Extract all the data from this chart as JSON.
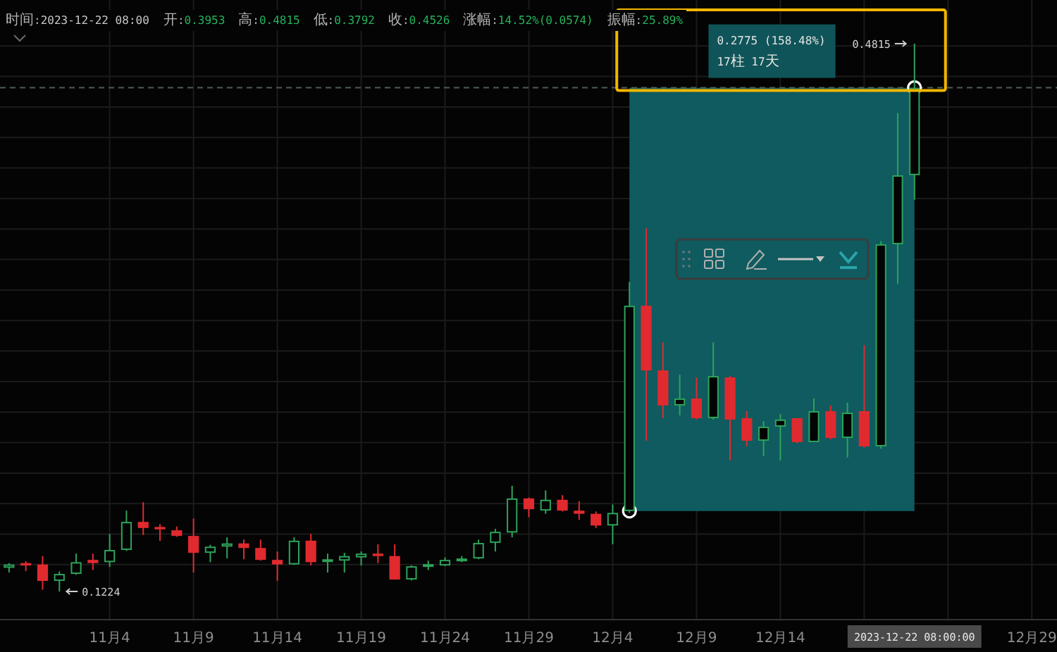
{
  "chart_data": {
    "type": "candlestick",
    "title": "时间:2023-12-22 08:00  开:0.3953  高:0.4815  低:0.3792  收:0.4526  涨幅:14.52%(0.0574)  振幅:25.89%",
    "x": [
      "2023-10-29",
      "2023-10-30",
      "2023-10-31",
      "2023-11-01",
      "2023-11-02",
      "2023-11-03",
      "2023-11-04",
      "2023-11-05",
      "2023-11-06",
      "2023-11-07",
      "2023-11-08",
      "2023-11-09",
      "2023-11-10",
      "2023-11-11",
      "2023-11-12",
      "2023-11-13",
      "2023-11-14",
      "2023-11-15",
      "2023-11-16",
      "2023-11-17",
      "2023-11-18",
      "2023-11-19",
      "2023-11-20",
      "2023-11-21",
      "2023-11-22",
      "2023-11-23",
      "2023-11-24",
      "2023-11-25",
      "2023-11-26",
      "2023-11-27",
      "2023-11-28",
      "2023-11-29",
      "2023-11-30",
      "2023-12-01",
      "2023-12-02",
      "2023-12-03",
      "2023-12-04",
      "2023-12-05",
      "2023-12-06",
      "2023-12-07",
      "2023-12-08",
      "2023-12-09",
      "2023-12-10",
      "2023-12-11",
      "2023-12-12",
      "2023-12-13",
      "2023-12-14",
      "2023-12-15",
      "2023-12-16",
      "2023-12-17",
      "2023-12-18",
      "2023-12-19",
      "2023-12-20",
      "2023-12-21",
      "2023-12-22"
    ],
    "ohlc": [
      [
        0.1379,
        0.141,
        0.1348,
        0.1401
      ],
      [
        0.141,
        0.1422,
        0.1357,
        0.1394
      ],
      [
        0.1401,
        0.1456,
        0.1235,
        0.1293
      ],
      [
        0.1293,
        0.1355,
        0.1224,
        0.1339
      ],
      [
        0.1339,
        0.1472,
        0.1333,
        0.1416
      ],
      [
        0.1431,
        0.1472,
        0.1364,
        0.141
      ],
      [
        0.1416,
        0.1601,
        0.1385,
        0.1496
      ],
      [
        0.1496,
        0.1754,
        0.149,
        0.168
      ],
      [
        0.168,
        0.1809,
        0.1594,
        0.164
      ],
      [
        0.1647,
        0.1665,
        0.1555,
        0.1631
      ],
      [
        0.1625,
        0.165,
        0.1582,
        0.1588
      ],
      [
        0.1588,
        0.1702,
        0.1348,
        0.1477
      ],
      [
        0.1477,
        0.153,
        0.1416,
        0.1518
      ],
      [
        0.1518,
        0.1579,
        0.144,
        0.1539
      ],
      [
        0.1539,
        0.1564,
        0.1435,
        0.1509
      ],
      [
        0.1509,
        0.1564,
        0.1426,
        0.1431
      ],
      [
        0.1431,
        0.1486,
        0.1293,
        0.1401
      ],
      [
        0.1401,
        0.1579,
        0.1398,
        0.1557
      ],
      [
        0.1557,
        0.1601,
        0.1394,
        0.1416
      ],
      [
        0.1422,
        0.1472,
        0.1348,
        0.1435
      ],
      [
        0.1426,
        0.1477,
        0.1348,
        0.1456
      ],
      [
        0.1447,
        0.1486,
        0.1394,
        0.1472
      ],
      [
        0.1472,
        0.1533,
        0.141,
        0.1456
      ],
      [
        0.1456,
        0.1533,
        0.1302,
        0.1302
      ],
      [
        0.1302,
        0.1395,
        0.1296,
        0.1389
      ],
      [
        0.1385,
        0.1426,
        0.1364,
        0.1403
      ],
      [
        0.1394,
        0.1447,
        0.139,
        0.1431
      ],
      [
        0.1426,
        0.1456,
        0.1416,
        0.144
      ],
      [
        0.144,
        0.1564,
        0.1435,
        0.1542
      ],
      [
        0.1542,
        0.1634,
        0.1486,
        0.1615
      ],
      [
        0.161,
        0.1917,
        0.1579,
        0.1834
      ],
      [
        0.1834,
        0.184,
        0.1711,
        0.1763
      ],
      [
        0.1754,
        0.1887,
        0.1733,
        0.1825
      ],
      [
        0.1825,
        0.1855,
        0.1748,
        0.1754
      ],
      [
        0.1754,
        0.1816,
        0.1693,
        0.1733
      ],
      [
        0.1733,
        0.1748,
        0.164,
        0.1656
      ],
      [
        0.1656,
        0.1794,
        0.1533,
        0.1739
      ],
      [
        0.1751,
        0.3254,
        0.174,
        0.3097
      ],
      [
        0.3097,
        0.3604,
        0.2212,
        0.2673
      ],
      [
        0.2673,
        0.2857,
        0.236,
        0.2443
      ],
      [
        0.2443,
        0.2645,
        0.2378,
        0.2489
      ],
      [
        0.2489,
        0.2627,
        0.2351,
        0.236
      ],
      [
        0.236,
        0.2857,
        0.2351,
        0.2636
      ],
      [
        0.2627,
        0.2636,
        0.2083,
        0.2351
      ],
      [
        0.236,
        0.2406,
        0.2175,
        0.2212
      ],
      [
        0.2212,
        0.2341,
        0.2111,
        0.2304
      ],
      [
        0.2304,
        0.2387,
        0.2083,
        0.2351
      ],
      [
        0.236,
        0.236,
        0.2194,
        0.2203
      ],
      [
        0.2203,
        0.2489,
        0.2203,
        0.2406
      ],
      [
        0.2406,
        0.2443,
        0.2221,
        0.223
      ],
      [
        0.223,
        0.2461,
        0.2102,
        0.2396
      ],
      [
        0.2406,
        0.2839,
        0.2166,
        0.2175
      ],
      [
        0.2175,
        0.352,
        0.216,
        0.35
      ],
      [
        0.35,
        0.436,
        0.324,
        0.3952
      ],
      [
        0.3953,
        0.4815,
        0.3792,
        0.4526
      ]
    ],
    "colors": [
      "#2ea35a",
      "#e02a2f",
      "#e02a2f",
      "#2ea35a",
      "#2ea35a",
      "#e02a2f",
      "#2ea35a",
      "#2ea35a",
      "#e02a2f",
      "#e02a2f",
      "#e02a2f",
      "#e02a2f",
      "#2ea35a",
      "#2ea35a",
      "#e02a2f",
      "#e02a2f",
      "#e02a2f",
      "#2ea35a",
      "#e02a2f",
      "#2ea35a",
      "#2ea35a",
      "#2ea35a",
      "#e02a2f",
      "#e02a2f",
      "#2ea35a",
      "#2ea35a",
      "#2ea35a",
      "#2ea35a",
      "#2ea35a",
      "#2ea35a",
      "#2ea35a",
      "#e02a2f",
      "#2ea35a",
      "#e02a2f",
      "#e02a2f",
      "#e02a2f",
      "#2ea35a",
      "#2ea35a",
      "#e02a2f",
      "#e02a2f",
      "#2ea35a",
      "#e02a2f",
      "#2ea35a",
      "#e02a2f",
      "#e02a2f",
      "#2ea35a",
      "#2ea35a",
      "#e02a2f",
      "#2ea35a",
      "#e02a2f",
      "#2ea35a",
      "#e02a2f",
      "#2ea35a",
      "#2ea35a",
      "#2ea35a"
    ],
    "xlim": [
      "2023-10-28T11:00",
      "2023-12-30T12:00"
    ],
    "xticks": [
      {
        "value": "2023-11-04",
        "label": "11月4"
      },
      {
        "value": "2023-11-09",
        "label": "11月9"
      },
      {
        "value": "2023-11-14",
        "label": "11月14"
      },
      {
        "value": "2023-11-19",
        "label": "11月19"
      },
      {
        "value": "2023-11-24",
        "label": "11月24"
      },
      {
        "value": "2023-11-29",
        "label": "11月29"
      },
      {
        "value": "2023-12-04",
        "label": "12月4"
      },
      {
        "value": "2023-12-09",
        "label": "12月9"
      },
      {
        "value": "2023-12-14",
        "label": "12月14"
      },
      {
        "value": "2023-12-19",
        "label": null
      },
      {
        "value": "2023-12-24",
        "label": null
      },
      {
        "value": "2023-12-29",
        "label": "12月29"
      }
    ],
    "yticks": [
      {
        "value": 0.14,
        "label": null
      },
      {
        "value": 0.16,
        "label": null
      },
      {
        "value": 0.18,
        "label": null
      },
      {
        "value": 0.2,
        "label": null
      },
      {
        "value": 0.22,
        "label": null
      },
      {
        "value": 0.24,
        "label": null
      },
      {
        "value": 0.26,
        "label": null
      },
      {
        "value": 0.28,
        "label": null
      },
      {
        "value": 0.3,
        "label": null
      },
      {
        "value": 0.32,
        "label": null
      },
      {
        "value": 0.34,
        "label": null
      },
      {
        "value": 0.36,
        "label": null
      },
      {
        "value": 0.38,
        "label": null
      },
      {
        "value": 0.4,
        "label": null
      },
      {
        "value": 0.42,
        "label": null
      },
      {
        "value": 0.44,
        "label": null
      },
      {
        "value": 0.46,
        "label": null
      },
      {
        "value": 0.48,
        "label": null
      }
    ],
    "tick_labels": "x",
    "grid": true,
    "series": [
      {
        "type": "scatter",
        "x": [
          "2023-12-05",
          "2023-12-22"
        ],
        "values": [
          0.1751,
          0.4526
        ],
        "color": "#ffffff",
        "marker": "circle"
      }
    ],
    "bands": [
      {
        "axis": "x",
        "from": "2023-12-05",
        "to": "2023-12-22",
        "color": "#0f5b5f"
      }
    ],
    "ref_lines": [
      {
        "axis": "y",
        "value": 0.4526,
        "color": "#4f5c55",
        "line_style": "dashed"
      }
    ],
    "annotations": [
      "0.2775 (158.48%)",
      "17柱 17天",
      "2023-12-22 08:00:00",
      {
        "text": "0.4815",
        "x": "2023-12-22",
        "y": 0.4815
      },
      {
        "text": "0.1224",
        "x": "2023-11-01",
        "y": 0.1224
      }
    ]
  }
}
